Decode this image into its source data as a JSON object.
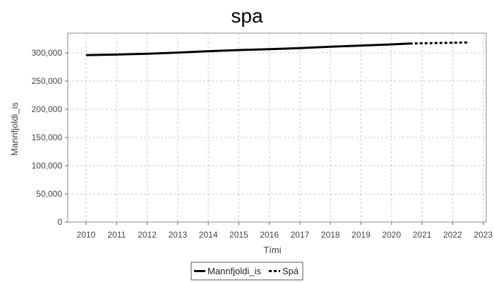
{
  "chart_data": {
    "type": "line",
    "title": "spa",
    "xlabel": "Tími",
    "ylabel": "Mannfjoldi_is",
    "xlim": [
      2009.4,
      2023.1
    ],
    "ylim": [
      0,
      335000
    ],
    "x_ticks": [
      2010,
      2011,
      2012,
      2013,
      2014,
      2015,
      2016,
      2017,
      2018,
      2019,
      2020,
      2021,
      2022,
      2023
    ],
    "y_ticks": [
      0,
      50000,
      100000,
      150000,
      200000,
      250000,
      300000
    ],
    "y_tick_labels": [
      "0",
      "50,000",
      "100,000",
      "150,000",
      "200,000",
      "250,000",
      "300,000"
    ],
    "x_tick_labels": [
      "2010",
      "2011",
      "2012",
      "2013",
      "2014",
      "2015",
      "2016",
      "2017",
      "2018",
      "2019",
      "2020",
      "2021",
      "2022",
      "2023"
    ],
    "grid": true,
    "legend_position": "bottom",
    "series": [
      {
        "name": "Mannfjoldi_is",
        "style": "solid",
        "color": "#000000",
        "x": [
          2010,
          2011,
          2012,
          2013,
          2014,
          2015,
          2016,
          2017,
          2018,
          2019,
          2020,
          2020.6
        ],
        "y": [
          296000,
          297000,
          298500,
          300500,
          303000,
          305000,
          306500,
          308500,
          311000,
          313000,
          315000,
          316500
        ]
      },
      {
        "name": "Spá",
        "style": "dashed",
        "color": "#000000",
        "x": [
          2020.6,
          2021,
          2021.5,
          2022,
          2022.5
        ],
        "y": [
          316500,
          317000,
          317500,
          318000,
          318500
        ]
      }
    ]
  }
}
